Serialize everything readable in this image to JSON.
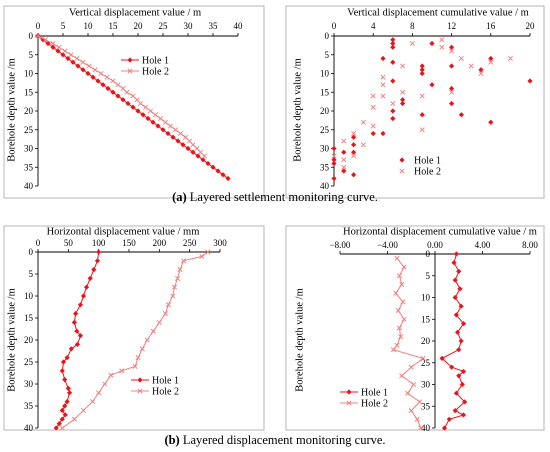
{
  "captions": {
    "a_label": "(a)",
    "a_text": "Layered settlement monitoring curve.",
    "b_label": "(b)",
    "b_text": "Layered displacement monitoring curve."
  },
  "colors": {
    "hole1": "#e8151b",
    "hole2": "#f08080",
    "axis": "#000000",
    "frame": "#a6a6a6"
  },
  "chart_data": [
    {
      "type": "line",
      "title": "Vertical displacement value / m",
      "xlabel": "",
      "ylabel": "Borehole depth value /m",
      "xlim": [
        0,
        40
      ],
      "ylim": [
        0,
        40
      ],
      "y_inverted": true,
      "grid": false,
      "x_ticks": [
        "0",
        "5",
        "10",
        "15",
        "20",
        "25",
        "30",
        "35",
        "40"
      ],
      "y_ticks": [
        "0",
        "5",
        "10",
        "15",
        "20",
        "25",
        "30",
        "35",
        "40"
      ],
      "legend": "upper-center",
      "series": [
        {
          "name": "Hole 1",
          "marker": "diamond",
          "points": [
            [
              0,
              0
            ],
            [
              1,
              1
            ],
            [
              2,
              2
            ],
            [
              3,
              3
            ],
            [
              4,
              4
            ],
            [
              5,
              5
            ],
            [
              6,
              6
            ],
            [
              7,
              7
            ],
            [
              8,
              8
            ],
            [
              9,
              9
            ],
            [
              10,
              10
            ],
            [
              11,
              11
            ],
            [
              12,
              12
            ],
            [
              13,
              13
            ],
            [
              14,
              14
            ],
            [
              15,
              15
            ],
            [
              16,
              16
            ],
            [
              17,
              17
            ],
            [
              18,
              18
            ],
            [
              19,
              19
            ],
            [
              20,
              20
            ],
            [
              21,
              21
            ],
            [
              22,
              22
            ],
            [
              23,
              23
            ],
            [
              24,
              24
            ],
            [
              25,
              25
            ],
            [
              26,
              26
            ],
            [
              27,
              27
            ],
            [
              28,
              28
            ],
            [
              29,
              29
            ],
            [
              30,
              30
            ],
            [
              31,
              31
            ],
            [
              32,
              32
            ],
            [
              33,
              33
            ],
            [
              34,
              34
            ],
            [
              35,
              35
            ],
            [
              36,
              36
            ],
            [
              37,
              37
            ],
            [
              38,
              38
            ]
          ]
        },
        {
          "name": "Hole 2",
          "marker": "x",
          "points": [
            [
              0,
              0
            ],
            [
              1.5,
              1
            ],
            [
              3,
              2
            ],
            [
              4.2,
              3
            ],
            [
              5.4,
              4
            ],
            [
              6.6,
              5
            ],
            [
              7.8,
              6
            ],
            [
              9,
              7
            ],
            [
              10.2,
              8
            ],
            [
              11.4,
              9
            ],
            [
              12.6,
              10
            ],
            [
              13.8,
              11
            ],
            [
              15,
              12
            ],
            [
              16,
              13
            ],
            [
              17,
              14
            ],
            [
              17.8,
              15
            ],
            [
              19,
              16
            ],
            [
              19.8,
              17
            ],
            [
              20.5,
              18
            ],
            [
              21.5,
              19
            ],
            [
              22.5,
              20
            ],
            [
              23.5,
              21
            ],
            [
              24.5,
              22
            ],
            [
              25.5,
              23
            ],
            [
              26.5,
              24
            ],
            [
              27.5,
              25
            ],
            [
              28.5,
              26
            ],
            [
              29.5,
              27
            ],
            [
              30.3,
              28
            ],
            [
              31,
              29
            ],
            [
              31.8,
              30
            ],
            [
              32.5,
              31
            ],
            [
              33.3,
              32
            ]
          ]
        }
      ]
    },
    {
      "type": "scatter",
      "title": "Vertical displacement cumulative value  / m",
      "xlabel": "",
      "ylabel": "Borehole depth value /m",
      "xlim": [
        0,
        20
      ],
      "ylim": [
        0,
        40
      ],
      "y_inverted": true,
      "grid": false,
      "x_ticks": [
        "0",
        "4",
        "8",
        "12",
        "16",
        "20"
      ],
      "y_ticks": [
        "0",
        "5",
        "10",
        "15",
        "20",
        "25",
        "30",
        "35",
        "40"
      ],
      "legend": "lower-center",
      "series": [
        {
          "name": "Hole 1",
          "marker": "diamond",
          "points": [
            [
              6,
              1
            ],
            [
              6,
              2
            ],
            [
              6,
              3
            ],
            [
              10,
              2
            ],
            [
              12,
              3
            ],
            [
              5,
              6
            ],
            [
              6,
              7
            ],
            [
              9,
              8
            ],
            [
              9,
              9
            ],
            [
              9,
              10
            ],
            [
              12,
              8
            ],
            [
              16,
              6
            ],
            [
              15,
              9
            ],
            [
              6,
              12
            ],
            [
              20,
              12
            ],
            [
              10,
              13
            ],
            [
              12,
              14
            ],
            [
              7,
              17
            ],
            [
              7,
              18
            ],
            [
              12,
              18
            ],
            [
              6,
              20
            ],
            [
              9,
              21
            ],
            [
              13,
              21
            ],
            [
              6,
              22
            ],
            [
              16,
              23
            ],
            [
              5,
              26
            ],
            [
              4,
              26
            ],
            [
              2,
              27
            ],
            [
              2,
              29
            ],
            [
              0,
              30
            ],
            [
              1,
              31
            ],
            [
              2,
              31
            ],
            [
              0,
              33
            ],
            [
              0,
              34
            ],
            [
              1,
              36
            ],
            [
              2,
              37
            ],
            [
              0,
              38
            ]
          ]
        },
        {
          "name": "Hole 2",
          "marker": "x",
          "points": [
            [
              8,
              2
            ],
            [
              11,
              1
            ],
            [
              11,
              3
            ],
            [
              12,
              4
            ],
            [
              13,
              6
            ],
            [
              16,
              7
            ],
            [
              18,
              6
            ],
            [
              7,
              8
            ],
            [
              14,
              8
            ],
            [
              15,
              10
            ],
            [
              5,
              11
            ],
            [
              5,
              13
            ],
            [
              5,
              16
            ],
            [
              4,
              16
            ],
            [
              7,
              15
            ],
            [
              6,
              18
            ],
            [
              12,
              15
            ],
            [
              9,
              16
            ],
            [
              4,
              19
            ],
            [
              3,
              23
            ],
            [
              4,
              24
            ],
            [
              2,
              26
            ],
            [
              9,
              25
            ],
            [
              1,
              28
            ],
            [
              3,
              29
            ],
            [
              0,
              32
            ],
            [
              1,
              33
            ],
            [
              2,
              32
            ],
            [
              1,
              35
            ]
          ]
        }
      ]
    },
    {
      "type": "line",
      "title": "Horizontal displacement value / mm",
      "xlabel": "",
      "ylabel": "Borehole depth value /m",
      "xlim": [
        0,
        300
      ],
      "ylim": [
        0,
        40
      ],
      "y_inverted": true,
      "grid": false,
      "x_ticks": [
        "0",
        "50",
        "100",
        "150",
        "200",
        "250",
        "300"
      ],
      "y_ticks": [
        "0",
        "5",
        "10",
        "15",
        "20",
        "25",
        "30",
        "35",
        "40"
      ],
      "legend": "lower-right",
      "series": [
        {
          "name": "Hole 1",
          "marker": "diamond",
          "points": [
            [
              100,
              0
            ],
            [
              98,
              2
            ],
            [
              92,
              4
            ],
            [
              86,
              6
            ],
            [
              80,
              8
            ],
            [
              75,
              10
            ],
            [
              70,
              12
            ],
            [
              62,
              14
            ],
            [
              60,
              16
            ],
            [
              64,
              18
            ],
            [
              70,
              19
            ],
            [
              65,
              21
            ],
            [
              55,
              22
            ],
            [
              48,
              24
            ],
            [
              42,
              25
            ],
            [
              40,
              27
            ],
            [
              44,
              29
            ],
            [
              50,
              31
            ],
            [
              52,
              32
            ],
            [
              48,
              34
            ],
            [
              44,
              35
            ],
            [
              40,
              36
            ],
            [
              45,
              37
            ],
            [
              40,
              38
            ],
            [
              35,
              39
            ],
            [
              30,
              40
            ]
          ]
        },
        {
          "name": "Hole 2",
          "marker": "x",
          "points": [
            [
              280,
              0
            ],
            [
              270,
              1
            ],
            [
              240,
              2
            ],
            [
              234,
              4
            ],
            [
              230,
              6
            ],
            [
              225,
              8
            ],
            [
              222,
              10
            ],
            [
              215,
              12
            ],
            [
              210,
              14
            ],
            [
              200,
              16
            ],
            [
              190,
              18
            ],
            [
              180,
              20
            ],
            [
              172,
              22
            ],
            [
              165,
              24
            ],
            [
              160,
              26
            ],
            [
              138,
              27
            ],
            [
              120,
              28
            ],
            [
              110,
              30
            ],
            [
              100,
              32
            ],
            [
              90,
              34
            ],
            [
              75,
              36
            ],
            [
              60,
              38
            ],
            [
              40,
              40
            ]
          ]
        }
      ]
    },
    {
      "type": "line",
      "title": "Horizontal displacement cumulative value / m",
      "xlabel": "",
      "ylabel": "Borehole depth value /m",
      "xlim": [
        -8,
        8
      ],
      "ylim": [
        0,
        40
      ],
      "y_inverted": true,
      "grid": false,
      "x_ticks": [
        "−8.00",
        "−4.00",
        "0.00",
        "4.00",
        "8.00"
      ],
      "y_ticks": [
        "0",
        "5",
        "10",
        "15",
        "20",
        "25",
        "30",
        "35",
        "40"
      ],
      "legend": "lower-left",
      "series": [
        {
          "name": "Hole 1",
          "marker": "diamond",
          "points": [
            [
              1.8,
              0
            ],
            [
              1.6,
              2
            ],
            [
              2.0,
              4
            ],
            [
              1.7,
              6
            ],
            [
              2.1,
              8
            ],
            [
              1.7,
              10
            ],
            [
              2.2,
              12
            ],
            [
              1.8,
              14
            ],
            [
              2.4,
              16
            ],
            [
              1.9,
              18
            ],
            [
              2.2,
              20
            ],
            [
              2.0,
              22
            ],
            [
              0.6,
              24
            ],
            [
              1.4,
              26
            ],
            [
              2.4,
              27
            ],
            [
              2.0,
              28
            ],
            [
              2.3,
              30
            ],
            [
              1.8,
              32
            ],
            [
              2.5,
              34
            ],
            [
              1.7,
              36
            ],
            [
              2.4,
              37
            ],
            [
              1.2,
              38
            ],
            [
              0.8,
              40
            ]
          ]
        },
        {
          "name": "Hole 2",
          "marker": "x",
          "points": [
            [
              -3.2,
              1
            ],
            [
              -2.6,
              3
            ],
            [
              -3.0,
              5
            ],
            [
              -2.8,
              7
            ],
            [
              -3.3,
              9
            ],
            [
              -2.7,
              11
            ],
            [
              -3.1,
              13
            ],
            [
              -2.6,
              15
            ],
            [
              -3.0,
              17
            ],
            [
              -2.9,
              19
            ],
            [
              -3.2,
              21
            ],
            [
              -3.5,
              22
            ],
            [
              -1.0,
              24
            ],
            [
              -2.0,
              26
            ],
            [
              -2.8,
              28
            ],
            [
              -1.8,
              30
            ],
            [
              -2.3,
              32
            ],
            [
              -1.3,
              34
            ],
            [
              -2.0,
              36
            ],
            [
              -1.5,
              38
            ],
            [
              -1.2,
              40
            ]
          ]
        }
      ]
    }
  ]
}
